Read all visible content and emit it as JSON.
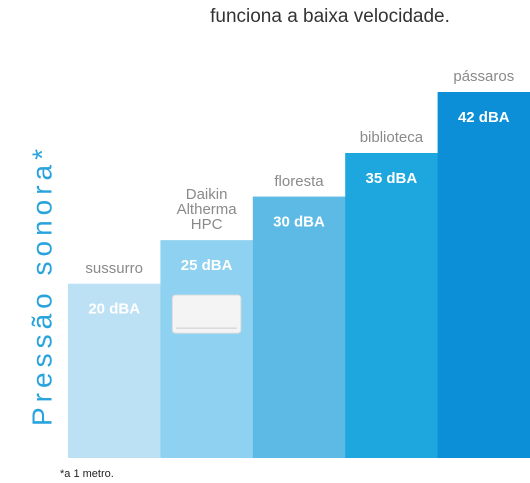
{
  "chart_data": {
    "type": "bar",
    "title": "funciona a baixa velocidade.",
    "y_label": "Pressão sonora*",
    "categories": [
      "sussurro",
      "Daikin Altherma HPC",
      "floresta",
      "biblioteca",
      "pássaros"
    ],
    "values": [
      20,
      25,
      30,
      35,
      42
    ],
    "value_labels": [
      "20 dBA",
      "25 dBA",
      "30 dBA",
      "35 dBA",
      "42 dBA"
    ],
    "colors": [
      "#bde1f4",
      "#8fd1f0",
      "#5cbae5",
      "#1ea6df",
      "#0c8fd6"
    ],
    "ylim": [
      0,
      42
    ],
    "footnote": "*a 1 metro."
  }
}
